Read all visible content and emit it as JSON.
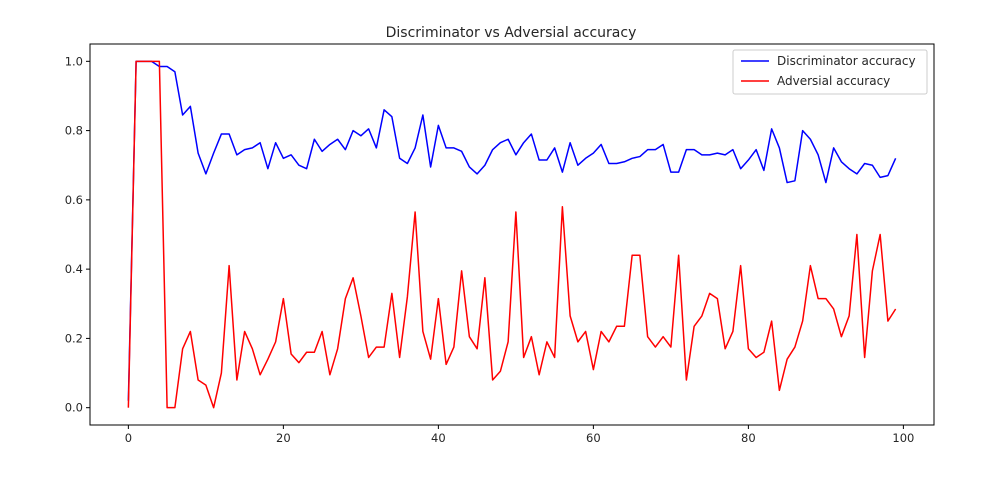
{
  "chart_data": {
    "type": "line",
    "title": "Discriminator vs Adversial accuracy",
    "xlabel": "",
    "ylabel": "",
    "xlim": [
      -4.95,
      103.95
    ],
    "ylim": [
      -0.05,
      1.05
    ],
    "xticks": [
      0,
      20,
      40,
      60,
      80,
      100
    ],
    "xtick_labels": [
      "0",
      "20",
      "40",
      "60",
      "80",
      "100"
    ],
    "yticks": [
      0.0,
      0.2,
      0.4,
      0.6,
      0.8,
      1.0
    ],
    "ytick_labels": [
      "0.0",
      "0.2",
      "0.4",
      "0.6",
      "0.8",
      "1.0"
    ],
    "grid": false,
    "legend_position": "top-right",
    "x": [
      0,
      1,
      2,
      3,
      4,
      5,
      6,
      7,
      8,
      9,
      10,
      11,
      12,
      13,
      14,
      15,
      16,
      17,
      18,
      19,
      20,
      21,
      22,
      23,
      24,
      25,
      26,
      27,
      28,
      29,
      30,
      31,
      32,
      33,
      34,
      35,
      36,
      37,
      38,
      39,
      40,
      41,
      42,
      43,
      44,
      45,
      46,
      47,
      48,
      49,
      50,
      51,
      52,
      53,
      54,
      55,
      56,
      57,
      58,
      59,
      60,
      61,
      62,
      63,
      64,
      65,
      66,
      67,
      68,
      69,
      70,
      71,
      72,
      73,
      74,
      75,
      76,
      77,
      78,
      79,
      80,
      81,
      82,
      83,
      84,
      85,
      86,
      87,
      88,
      89,
      90,
      91,
      92,
      93,
      94,
      95,
      96,
      97,
      98,
      99
    ],
    "series": [
      {
        "name": "Discriminator accuracy",
        "color": "#0000ff",
        "values": [
          0.02,
          1.0,
          1.0,
          1.0,
          0.985,
          0.985,
          0.97,
          0.845,
          0.87,
          0.735,
          0.675,
          0.735,
          0.79,
          0.79,
          0.73,
          0.745,
          0.75,
          0.765,
          0.69,
          0.765,
          0.72,
          0.73,
          0.7,
          0.69,
          0.775,
          0.74,
          0.76,
          0.775,
          0.745,
          0.8,
          0.785,
          0.805,
          0.75,
          0.86,
          0.84,
          0.72,
          0.705,
          0.75,
          0.845,
          0.695,
          0.815,
          0.75,
          0.75,
          0.74,
          0.695,
          0.675,
          0.7,
          0.745,
          0.765,
          0.775,
          0.73,
          0.765,
          0.79,
          0.715,
          0.715,
          0.75,
          0.68,
          0.765,
          0.7,
          0.72,
          0.735,
          0.76,
          0.705,
          0.705,
          0.71,
          0.72,
          0.725,
          0.745,
          0.745,
          0.76,
          0.68,
          0.68,
          0.745,
          0.745,
          0.73,
          0.73,
          0.735,
          0.73,
          0.745,
          0.69,
          0.715,
          0.745,
          0.685,
          0.805,
          0.75,
          0.65,
          0.655,
          0.8,
          0.775,
          0.73,
          0.65,
          0.75,
          0.71,
          0.69,
          0.675,
          0.705,
          0.7,
          0.665,
          0.67,
          0.72
        ]
      },
      {
        "name": "Adversial accuracy",
        "color": "#ff0000",
        "values": [
          0.0,
          1.0,
          1.0,
          1.0,
          1.0,
          0.0,
          0.0,
          0.17,
          0.22,
          0.08,
          0.065,
          0.0,
          0.1,
          0.41,
          0.08,
          0.22,
          0.17,
          0.095,
          0.14,
          0.19,
          0.315,
          0.155,
          0.13,
          0.16,
          0.16,
          0.22,
          0.095,
          0.17,
          0.315,
          0.375,
          0.265,
          0.145,
          0.175,
          0.175,
          0.33,
          0.145,
          0.32,
          0.565,
          0.22,
          0.14,
          0.315,
          0.125,
          0.175,
          0.395,
          0.205,
          0.17,
          0.375,
          0.08,
          0.105,
          0.19,
          0.565,
          0.145,
          0.205,
          0.095,
          0.19,
          0.145,
          0.58,
          0.265,
          0.19,
          0.22,
          0.11,
          0.22,
          0.19,
          0.235,
          0.235,
          0.44,
          0.44,
          0.205,
          0.175,
          0.205,
          0.175,
          0.44,
          0.08,
          0.235,
          0.265,
          0.33,
          0.315,
          0.17,
          0.22,
          0.41,
          0.17,
          0.145,
          0.16,
          0.25,
          0.05,
          0.14,
          0.175,
          0.25,
          0.41,
          0.315,
          0.315,
          0.285,
          0.205,
          0.265,
          0.5,
          0.145,
          0.395,
          0.5,
          0.25,
          0.285
        ]
      }
    ]
  }
}
